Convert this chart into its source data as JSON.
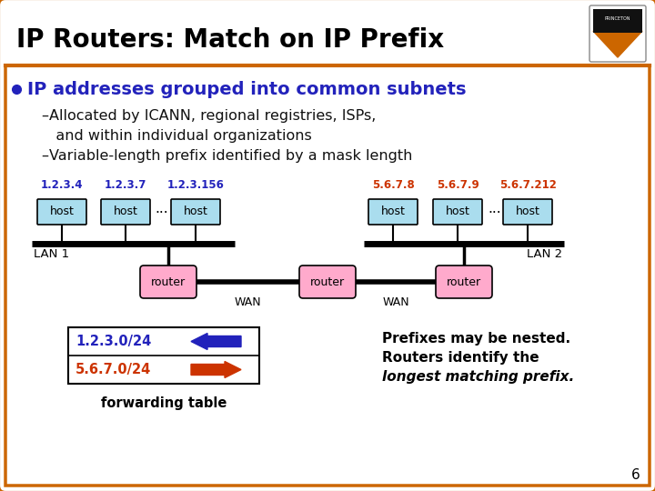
{
  "title": "IP Routers: Match on IP Prefix",
  "bg_color": "#ffffff",
  "border_color": "#cc6600",
  "title_color": "#000000",
  "bullet_color": "#2222bb",
  "bullet_text": "IP addresses grouped into common subnets",
  "sub1a": "–Allocated by ICANN, regional registries, ISPs,",
  "sub1b": "   and within individual organizations",
  "sub2": "–Variable-length prefix identified by a mask length",
  "lan1_label": "LAN 1",
  "lan2_label": "LAN 2",
  "wan1_label": "WAN",
  "wan2_label": "WAN",
  "host_color": "#aaddee",
  "router_color": "#ffaacc",
  "host_border": "#000000",
  "router_border": "#000000",
  "lan_line_color": "#000000",
  "wan_line_color": "#000000",
  "ip_lan1": [
    "1.2.3.4",
    "1.2.3.7",
    "1.2.3.156"
  ],
  "ip_lan2": [
    "5.6.7.8",
    "5.6.7.9",
    "5.6.7.212"
  ],
  "ip_lan1_color": "#2222bb",
  "ip_lan2_color": "#cc3300",
  "route1_text": "1.2.3.0/24",
  "route2_text": "5.6.7.0/24",
  "route1_color": "#2222bb",
  "route2_color": "#cc3300",
  "arrow1_color": "#2222bb",
  "arrow2_color": "#cc3300",
  "fwd_table_label": "forwarding table",
  "note_line1": "Prefixes may be nested.",
  "note_line2": "Routers identify the",
  "note_line3": "longest matching prefix.",
  "slide_num": "6"
}
